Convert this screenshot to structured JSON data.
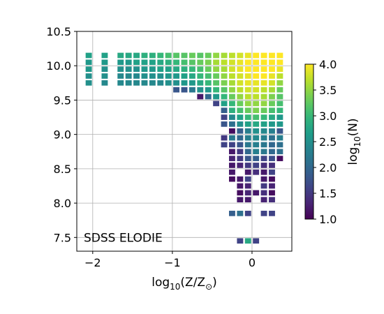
{
  "chart_data": {
    "type": "heatmap",
    "title": "",
    "annotation": "SDSS ELODIE",
    "xlabel": {
      "prefix": "log",
      "sub": "10",
      "suffix": "(Z/Z",
      "odot": "⊙",
      "close": ")"
    },
    "ylabel": "",
    "xlim": [
      -2.2,
      0.5
    ],
    "ylim": [
      7.3,
      10.5
    ],
    "x_ticks": [
      -2,
      -1,
      0
    ],
    "x_tick_labels": [
      "−2",
      "−1",
      "0"
    ],
    "y_ticks": [
      7.5,
      8.0,
      8.5,
      9.0,
      9.5,
      10.0,
      10.5
    ],
    "y_tick_labels": [
      "7.5",
      "8.0",
      "8.5",
      "9.0",
      "9.5",
      "10.0",
      "10.5"
    ],
    "grid": true,
    "colorbar": {
      "label": {
        "prefix": "log",
        "sub": "10",
        "suffix": "(N)"
      },
      "range": [
        1.0,
        4.0
      ],
      "colormap": "viridis",
      "ticks": [
        "1.0",
        "1.5",
        "2.0",
        "2.5",
        "3.0",
        "3.5",
        "4.0"
      ]
    },
    "cell_size": {
      "dx": 0.1,
      "dy": 0.1
    },
    "rows": [
      {
        "y": 10.15,
        "cells": [
          [
            -2.05,
            2.7
          ],
          [
            -1.85,
            2.7
          ],
          [
            -1.65,
            2.8
          ],
          [
            -1.55,
            2.8
          ],
          [
            -1.45,
            2.8
          ],
          [
            -1.35,
            2.9
          ],
          [
            -1.25,
            2.9
          ],
          [
            -1.15,
            3.0
          ],
          [
            -1.05,
            3.1
          ],
          [
            -0.95,
            3.2
          ],
          [
            -0.85,
            3.2
          ],
          [
            -0.75,
            3.3
          ],
          [
            -0.65,
            3.2
          ],
          [
            -0.55,
            3.3
          ],
          [
            -0.45,
            3.5
          ],
          [
            -0.35,
            3.6
          ],
          [
            -0.25,
            3.7
          ],
          [
            -0.15,
            3.8
          ],
          [
            -0.05,
            3.9
          ],
          [
            0.05,
            4.0
          ],
          [
            0.15,
            4.0
          ],
          [
            0.25,
            4.0
          ],
          [
            0.35,
            4.0
          ]
        ]
      },
      {
        "y": 10.05,
        "cells": [
          [
            -2.05,
            2.6
          ],
          [
            -1.85,
            2.6
          ],
          [
            -1.65,
            2.6
          ],
          [
            -1.55,
            2.6
          ],
          [
            -1.45,
            2.7
          ],
          [
            -1.35,
            2.7
          ],
          [
            -1.25,
            2.7
          ],
          [
            -1.15,
            2.8
          ],
          [
            -1.05,
            2.9
          ],
          [
            -0.95,
            3.0
          ],
          [
            -0.85,
            3.1
          ],
          [
            -0.75,
            3.2
          ],
          [
            -0.65,
            3.3
          ],
          [
            -0.55,
            3.4
          ],
          [
            -0.45,
            3.6
          ],
          [
            -0.35,
            3.7
          ],
          [
            -0.25,
            3.8
          ],
          [
            -0.15,
            3.9
          ],
          [
            -0.05,
            4.0
          ],
          [
            0.05,
            4.0
          ],
          [
            0.15,
            4.0
          ],
          [
            0.25,
            4.0
          ],
          [
            0.35,
            4.0
          ]
        ]
      },
      {
        "y": 9.95,
        "cells": [
          [
            -2.05,
            2.6
          ],
          [
            -1.85,
            2.5
          ],
          [
            -1.65,
            2.5
          ],
          [
            -1.55,
            2.5
          ],
          [
            -1.45,
            2.5
          ],
          [
            -1.35,
            2.6
          ],
          [
            -1.25,
            2.6
          ],
          [
            -1.15,
            2.7
          ],
          [
            -1.05,
            2.7
          ],
          [
            -0.95,
            2.8
          ],
          [
            -0.85,
            2.9
          ],
          [
            -0.75,
            3.0
          ],
          [
            -0.65,
            3.1
          ],
          [
            -0.55,
            3.3
          ],
          [
            -0.45,
            3.5
          ],
          [
            -0.35,
            3.6
          ],
          [
            -0.25,
            3.8
          ],
          [
            -0.15,
            3.9
          ],
          [
            -0.05,
            4.0
          ],
          [
            0.05,
            4.0
          ],
          [
            0.15,
            4.0
          ],
          [
            0.25,
            4.0
          ],
          [
            0.35,
            3.9
          ]
        ]
      },
      {
        "y": 9.85,
        "cells": [
          [
            -2.05,
            2.5
          ],
          [
            -1.85,
            2.5
          ],
          [
            -1.65,
            2.4
          ],
          [
            -1.55,
            2.4
          ],
          [
            -1.45,
            2.4
          ],
          [
            -1.35,
            2.5
          ],
          [
            -1.25,
            2.5
          ],
          [
            -1.15,
            2.5
          ],
          [
            -1.05,
            2.6
          ],
          [
            -0.95,
            2.6
          ],
          [
            -0.85,
            2.7
          ],
          [
            -0.75,
            2.8
          ],
          [
            -0.65,
            3.0
          ],
          [
            -0.55,
            3.1
          ],
          [
            -0.45,
            3.3
          ],
          [
            -0.35,
            3.5
          ],
          [
            -0.25,
            3.7
          ],
          [
            -0.15,
            3.8
          ],
          [
            -0.05,
            3.9
          ],
          [
            0.05,
            4.0
          ],
          [
            0.15,
            4.0
          ],
          [
            0.25,
            3.9
          ],
          [
            0.35,
            3.7
          ]
        ]
      },
      {
        "y": 9.75,
        "cells": [
          [
            -2.05,
            2.5
          ],
          [
            -1.85,
            2.4
          ],
          [
            -1.65,
            2.4
          ],
          [
            -1.55,
            2.4
          ],
          [
            -1.45,
            2.4
          ],
          [
            -1.35,
            2.4
          ],
          [
            -1.25,
            2.4
          ],
          [
            -1.15,
            2.4
          ],
          [
            -1.05,
            2.5
          ],
          [
            -0.95,
            2.5
          ],
          [
            -0.85,
            2.6
          ],
          [
            -0.75,
            2.6
          ],
          [
            -0.65,
            2.8
          ],
          [
            -0.55,
            3.0
          ],
          [
            -0.45,
            3.2
          ],
          [
            -0.35,
            3.4
          ],
          [
            -0.25,
            3.6
          ],
          [
            -0.15,
            3.8
          ],
          [
            -0.05,
            3.9
          ],
          [
            0.05,
            3.9
          ],
          [
            0.15,
            3.9
          ],
          [
            0.25,
            3.8
          ],
          [
            0.35,
            3.5
          ]
        ]
      },
      {
        "y": 9.65,
        "cells": [
          [
            -0.95,
            1.8
          ],
          [
            -0.85,
            1.8
          ],
          [
            -0.75,
            2.2
          ],
          [
            -0.65,
            2.5
          ],
          [
            -0.55,
            2.6
          ],
          [
            -0.45,
            3.0
          ],
          [
            -0.35,
            3.2
          ],
          [
            -0.25,
            3.5
          ],
          [
            -0.15,
            3.7
          ],
          [
            -0.05,
            3.8
          ],
          [
            0.05,
            3.8
          ],
          [
            0.15,
            3.7
          ],
          [
            0.25,
            3.6
          ],
          [
            0.35,
            3.3
          ]
        ]
      },
      {
        "y": 9.55,
        "cells": [
          [
            -0.65,
            1.2
          ],
          [
            -0.55,
            2.0
          ],
          [
            -0.45,
            2.6
          ],
          [
            -0.35,
            3.0
          ],
          [
            -0.25,
            3.3
          ],
          [
            -0.15,
            3.5
          ],
          [
            -0.05,
            3.7
          ],
          [
            0.05,
            3.7
          ],
          [
            0.15,
            3.6
          ],
          [
            0.25,
            3.4
          ],
          [
            0.35,
            3.2
          ]
        ]
      },
      {
        "y": 9.45,
        "cells": [
          [
            -0.45,
            1.6
          ],
          [
            -0.35,
            2.7
          ],
          [
            -0.25,
            3.0
          ],
          [
            -0.15,
            3.3
          ],
          [
            -0.05,
            3.5
          ],
          [
            0.05,
            3.5
          ],
          [
            0.15,
            3.5
          ],
          [
            0.25,
            3.3
          ],
          [
            0.35,
            3.1
          ]
        ]
      },
      {
        "y": 9.35,
        "cells": [
          [
            -0.35,
            1.9
          ],
          [
            -0.25,
            2.9
          ],
          [
            -0.15,
            3.1
          ],
          [
            -0.05,
            3.3
          ],
          [
            0.05,
            3.4
          ],
          [
            0.15,
            3.3
          ],
          [
            0.25,
            3.1
          ],
          [
            0.35,
            3.0
          ]
        ]
      },
      {
        "y": 9.25,
        "cells": [
          [
            -0.35,
            1.6
          ],
          [
            -0.25,
            2.4
          ],
          [
            -0.15,
            2.7
          ],
          [
            -0.05,
            3.0
          ],
          [
            0.05,
            3.1
          ],
          [
            0.15,
            3.0
          ],
          [
            0.25,
            2.8
          ],
          [
            0.35,
            2.6
          ]
        ]
      },
      {
        "y": 9.15,
        "cells": [
          [
            -0.35,
            1.8
          ],
          [
            -0.25,
            2.1
          ],
          [
            -0.15,
            2.5
          ],
          [
            -0.05,
            2.7
          ],
          [
            0.05,
            2.8
          ],
          [
            0.15,
            2.7
          ],
          [
            0.25,
            2.6
          ],
          [
            0.35,
            2.6
          ]
        ]
      },
      {
        "y": 9.05,
        "cells": [
          [
            -0.25,
            1.1
          ],
          [
            -0.15,
            1.9
          ],
          [
            -0.05,
            2.3
          ],
          [
            0.05,
            2.5
          ],
          [
            0.15,
            2.4
          ],
          [
            0.25,
            2.3
          ],
          [
            0.35,
            1.8
          ]
        ]
      },
      {
        "y": 8.95,
        "cells": [
          [
            -0.35,
            1.5
          ],
          [
            -0.25,
            2.2
          ],
          [
            -0.15,
            2.0
          ],
          [
            -0.05,
            2.3
          ],
          [
            0.05,
            2.4
          ],
          [
            0.15,
            2.3
          ],
          [
            0.25,
            2.1
          ],
          [
            0.35,
            2.3
          ]
        ]
      },
      {
        "y": 8.85,
        "cells": [
          [
            -0.35,
            1.6
          ],
          [
            -0.25,
            1.6
          ],
          [
            -0.15,
            1.8
          ],
          [
            -0.05,
            2.2
          ],
          [
            0.05,
            2.3
          ],
          [
            0.15,
            2.2
          ],
          [
            0.25,
            2.0
          ],
          [
            0.35,
            2.1
          ]
        ]
      },
      {
        "y": 8.75,
        "cells": [
          [
            -0.25,
            1.2
          ],
          [
            -0.15,
            1.5
          ],
          [
            -0.05,
            2.0
          ],
          [
            0.05,
            2.3
          ],
          [
            0.15,
            2.2
          ],
          [
            0.25,
            2.0
          ],
          [
            0.35,
            2.1
          ]
        ]
      },
      {
        "y": 8.65,
        "cells": [
          [
            -0.25,
            1.3
          ],
          [
            -0.15,
            1.5
          ],
          [
            -0.05,
            1.8
          ],
          [
            0.05,
            1.9
          ],
          [
            0.15,
            1.6
          ],
          [
            0.25,
            1.7
          ],
          [
            0.35,
            1.1
          ]
        ]
      },
      {
        "y": 8.55,
        "cells": [
          [
            -0.25,
            1.2
          ],
          [
            -0.15,
            1.3
          ],
          [
            -0.05,
            1.5
          ],
          [
            0.05,
            1.6
          ],
          [
            0.15,
            1.4
          ],
          [
            0.25,
            1.4
          ]
        ]
      },
      {
        "y": 8.45,
        "cells": [
          [
            -0.25,
            1.2
          ],
          [
            -0.05,
            1.2
          ],
          [
            0.05,
            1.4
          ],
          [
            0.15,
            1.2
          ],
          [
            0.25,
            1.6
          ]
        ]
      },
      {
        "y": 8.35,
        "cells": [
          [
            -0.25,
            1.1
          ],
          [
            -0.15,
            1.2
          ],
          [
            -0.05,
            1.6
          ],
          [
            0.15,
            1.2
          ],
          [
            0.25,
            1.1
          ]
        ]
      },
      {
        "y": 8.25,
        "cells": [
          [
            -0.15,
            1.2
          ],
          [
            -0.05,
            1.3
          ],
          [
            0.15,
            1.5
          ],
          [
            0.25,
            1.3
          ]
        ]
      },
      {
        "y": 8.15,
        "cells": [
          [
            -0.15,
            1.1
          ],
          [
            -0.05,
            1.3
          ],
          [
            0.05,
            1.2
          ],
          [
            0.15,
            1.4
          ],
          [
            0.25,
            1.1
          ]
        ]
      },
      {
        "y": 8.05,
        "cells": [
          [
            -0.15,
            1.2
          ],
          [
            -0.05,
            1.2
          ],
          [
            0.15,
            1.3
          ],
          [
            0.25,
            1.4
          ]
        ]
      },
      {
        "y": 7.85,
        "cells": [
          [
            -0.25,
            1.9
          ],
          [
            -0.15,
            2.1
          ],
          [
            -0.05,
            1.6
          ],
          [
            0.15,
            1.6
          ],
          [
            0.25,
            1.6
          ]
        ]
      },
      {
        "y": 7.45,
        "cells": [
          [
            -0.15,
            1.6
          ],
          [
            -0.05,
            2.8
          ],
          [
            0.05,
            1.6
          ]
        ]
      }
    ]
  }
}
